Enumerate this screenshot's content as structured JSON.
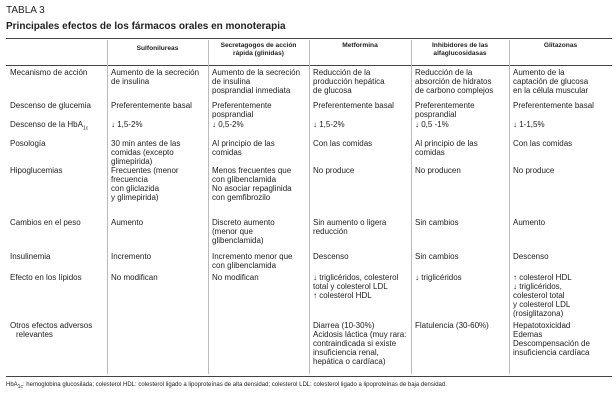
{
  "header": {
    "label": "TABLA 3",
    "title": "Principales efectos de los fármacos orales en monoterapia"
  },
  "table": {
    "columns": [
      "Sulfonilureas",
      "Secretagogos de acción rápida (glinidas)",
      "Metformina",
      "Inhibidores de las alfaglucosidasas",
      "Glitazonas"
    ],
    "rows": [
      {
        "label": [
          "Mecanismo de acción"
        ],
        "cells": [
          [
            "Aumento de la secreción",
            "de insulina"
          ],
          [
            "Aumento de la secreción",
            "de insulina",
            "posprandial inmediata"
          ],
          [
            "Reducción de la",
            "producción hepática",
            "de glucosa"
          ],
          [
            "Reducción de la",
            "absorción de hidratos",
            "de carbono complejos"
          ],
          [
            "Aumento de la",
            "captación de glucosa",
            "en la célula muscular"
          ]
        ]
      },
      {
        "label": [
          "Descenso de glucemia"
        ],
        "cells": [
          [
            "Preferentemente basal"
          ],
          [
            "Preferentemente",
            "posprandial"
          ],
          [
            "Preferentemente basal"
          ],
          [
            "Preferentemente",
            "posprandial"
          ],
          [
            "Preferentemente basal"
          ]
        ]
      },
      {
        "label": [
          "Descenso de la HbA"
        ],
        "label_sub": "1c",
        "cells": [
          [
            "↓ 1,5-2%"
          ],
          [
            "↓ 0,5-2%"
          ],
          [
            "↓ 1,5-2%"
          ],
          [
            "↓ 0,5 -1%"
          ],
          [
            "↓ 1-1,5%"
          ]
        ]
      },
      {
        "label": [
          "Posología"
        ],
        "cells": [
          [
            "30 min antes de las",
            "comidas (excepto",
            "glimepirida)"
          ],
          [
            "Al principio de las",
            "comidas"
          ],
          [
            "Con las comidas"
          ],
          [
            "Al principio de las",
            "comidas"
          ],
          [
            "Con las comidas"
          ]
        ]
      },
      {
        "label": [
          "Hipoglucemias"
        ],
        "cells": [
          [
            "Frecuentes (menor",
            "frecuencia",
            "con gliclazida",
            "y glimepirida)"
          ],
          [
            "Menos frecuentes que",
            "con glibenclamida",
            "No asociar repaglinida",
            "con gemfibrozilo"
          ],
          [
            "No produce"
          ],
          [
            "No producen"
          ],
          [
            "No produce"
          ]
        ]
      },
      {
        "label": [
          "Cambios en el peso"
        ],
        "cells": [
          [
            "Aumento"
          ],
          [
            "Discreto aumento",
            "(menor que",
            "glibenclamida)"
          ],
          [
            "Sin aumento o ligera",
            "reducción"
          ],
          [
            "Sin cambios"
          ],
          [
            "Aumento"
          ]
        ]
      },
      {
        "label": [
          "Insulinemia"
        ],
        "cells": [
          [
            "Incremento"
          ],
          [
            "Incremento menor que",
            "con glibenclamida"
          ],
          [
            "Descenso"
          ],
          [
            "Sin cambios"
          ],
          [
            "Descenso"
          ]
        ]
      },
      {
        "label": [
          "Efecto en los lípidos"
        ],
        "cells": [
          [
            "No modifican"
          ],
          [
            "No modifican"
          ],
          [
            "↓ triglicéridos, colesterol",
            "total y colesterol LDL",
            "↑ colesterol HDL"
          ],
          [
            "↓ triglicéridos"
          ],
          [
            "↑ colesterol HDL",
            "↓ triglicéridos,",
            "colesterol total",
            "y colesterol LDL",
            "(rosiglitazona)"
          ]
        ]
      },
      {
        "label": [
          "Otros efectos adversos",
          "relevantes"
        ],
        "cells": [
          [],
          [],
          [
            "Diarrea (10-30%)",
            "Acidosis láctica (muy rara:",
            "contraindicada si existe",
            "insuficiencia renal,",
            "hepática o cardíaca)"
          ],
          [
            "Flatulencia (30-60%)"
          ],
          [
            "Hepatotoxicidad",
            "Edemas",
            "Descompensación de",
            "insuficiencia cardíaca"
          ]
        ]
      }
    ]
  },
  "footnote": {
    "abbr": "HbA",
    "sub": "1c",
    "text": ": hemoglobina glucosilada; colesterol HDL: colesterol ligado a lipoproteínas de alta densidad; colesterol LDL: colesterol ligado a lipoproteínas de baja densidad."
  }
}
